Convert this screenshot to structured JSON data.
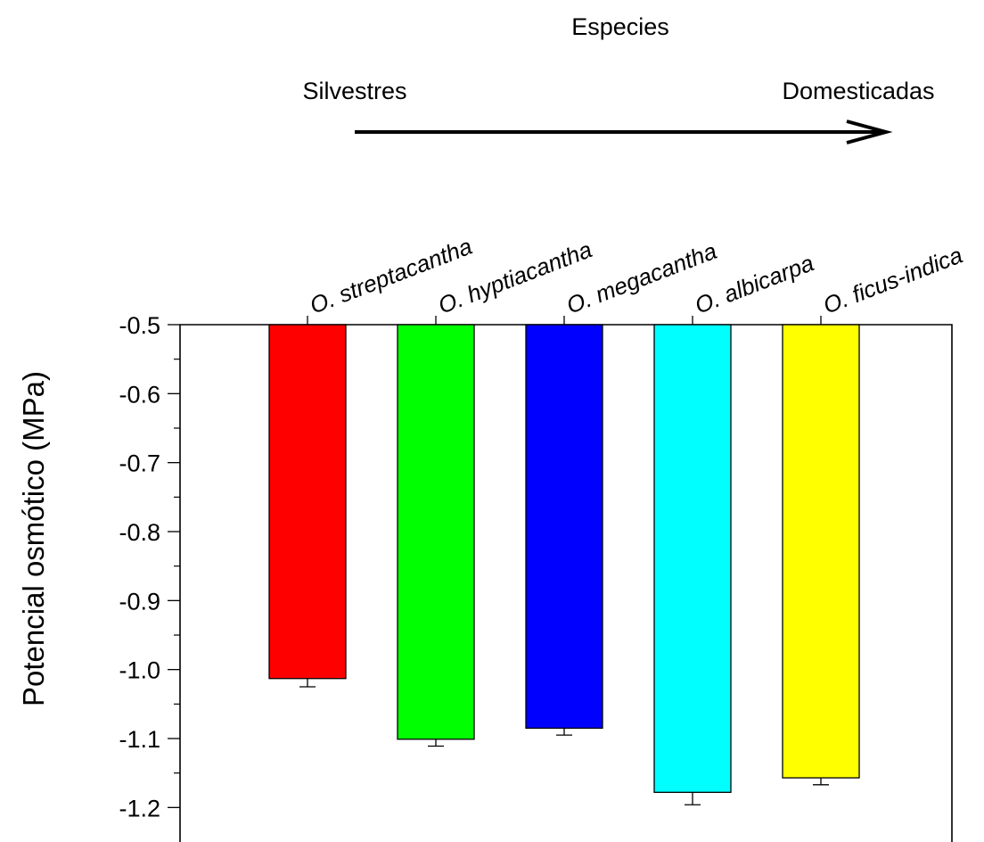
{
  "chart_data": {
    "type": "bar",
    "title": "Especies",
    "gradient_start_label": "Silvestres",
    "gradient_end_label": "Domesticadas",
    "ylabel": "Potencial osmótico (MPa)",
    "xlabel": "",
    "x_axis_position": "top",
    "bars_hang_from_top": true,
    "ylim": [
      -1.25,
      -0.5
    ],
    "y_ticks": [
      -0.5,
      -0.6,
      -0.7,
      -0.8,
      -0.9,
      -1.0,
      -1.1,
      -1.2
    ],
    "y_tick_labels": [
      "-0.5",
      "-0.6",
      "-0.7",
      "-0.8",
      "-0.9",
      "-1.0",
      "-1.1",
      "-1.2"
    ],
    "y_minor_ticks": [
      -0.55,
      -0.65,
      -0.75,
      -0.85,
      -0.95,
      -1.05,
      -1.15
    ],
    "grid": false,
    "legend": "none",
    "categories": [
      "O. streptacantha",
      "O. hyptiacantha",
      "O. megacantha",
      "O. albicarpa",
      "O. ficus-indica"
    ],
    "values": [
      -1.013,
      -1.101,
      -1.085,
      -1.178,
      -1.157
    ],
    "errors": [
      0.012,
      0.01,
      0.01,
      0.018,
      0.01
    ],
    "colors": [
      "#ff0000",
      "#00ff00",
      "#0000ff",
      "#00ffff",
      "#ffff00"
    ]
  }
}
